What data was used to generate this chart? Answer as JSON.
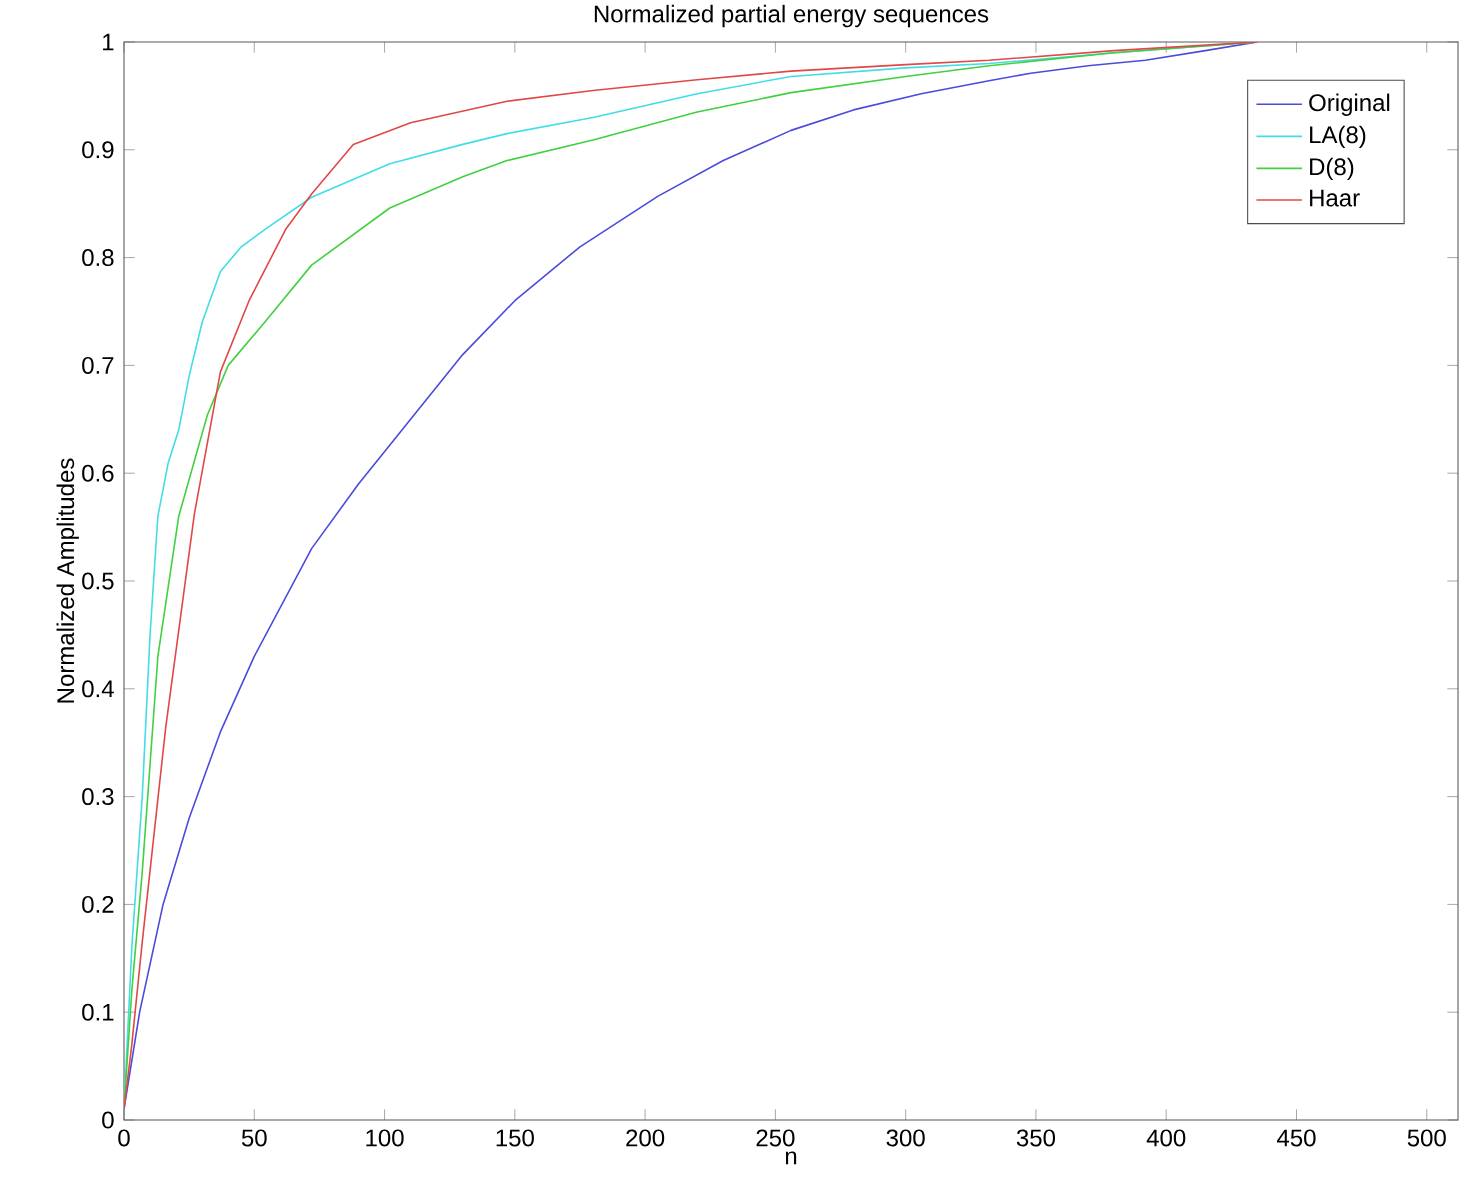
{
  "chart_data": {
    "type": "line",
    "title": "Normalized partial energy sequences",
    "xlabel": "n",
    "ylabel": "Normalized Amplitudes",
    "xlim": [
      0,
      512
    ],
    "ylim": [
      0,
      1
    ],
    "xticks": [
      0,
      50,
      100,
      150,
      200,
      250,
      300,
      350,
      400,
      450,
      500
    ],
    "yticks": [
      0,
      0.1,
      0.2,
      0.3,
      0.4,
      0.5,
      0.6,
      0.7,
      0.8,
      0.9,
      1
    ],
    "legend": "top right",
    "grid": false,
    "marker": "none",
    "line_style": "solid",
    "series": [
      {
        "name": "Original",
        "color": "#4b4bdc",
        "x": [
          0,
          6,
          15,
          25,
          37,
          50,
          72,
          90,
          110,
          130,
          150,
          175,
          205,
          230,
          256,
          280,
          306,
          332,
          348,
          370,
          392,
          415,
          435
        ],
        "values": [
          0.01,
          0.1,
          0.2,
          0.28,
          0.36,
          0.43,
          0.53,
          0.59,
          0.65,
          0.71,
          0.76,
          0.81,
          0.857,
          0.89,
          0.918,
          0.937,
          0.952,
          0.964,
          0.971,
          0.978,
          0.983,
          0.992,
          1
        ]
      },
      {
        "name": "LA(8)",
        "color": "#40dde6",
        "x": [
          0,
          3,
          7,
          10,
          13,
          17,
          21,
          25,
          30,
          37,
          45,
          54,
          72,
          102,
          130,
          147,
          180,
          220,
          256,
          300,
          332,
          380,
          435
        ],
        "values": [
          0.01,
          0.16,
          0.3,
          0.45,
          0.56,
          0.61,
          0.64,
          0.69,
          0.74,
          0.787,
          0.81,
          0.826,
          0.856,
          0.887,
          0.905,
          0.915,
          0.93,
          0.952,
          0.968,
          0.976,
          0.98,
          0.99,
          1
        ]
      },
      {
        "name": "D(8)",
        "color": "#40d040",
        "x": [
          0,
          3,
          7,
          13,
          21,
          32,
          40,
          54,
          72,
          102,
          130,
          147,
          180,
          220,
          256,
          300,
          332,
          380,
          435
        ],
        "values": [
          0.01,
          0.12,
          0.23,
          0.43,
          0.56,
          0.654,
          0.7,
          0.74,
          0.793,
          0.846,
          0.875,
          0.89,
          0.909,
          0.935,
          0.953,
          0.968,
          0.978,
          0.99,
          1
        ]
      },
      {
        "name": "Haar",
        "color": "#e04848",
        "x": [
          0,
          3,
          7,
          16,
          27,
          37,
          48,
          62,
          72,
          88,
          110,
          147,
          180,
          220,
          256,
          300,
          332,
          380,
          435
        ],
        "values": [
          0.01,
          0.07,
          0.165,
          0.364,
          0.562,
          0.694,
          0.76,
          0.826,
          0.859,
          0.905,
          0.925,
          0.945,
          0.955,
          0.965,
          0.973,
          0.979,
          0.983,
          0.992,
          1
        ]
      }
    ]
  }
}
